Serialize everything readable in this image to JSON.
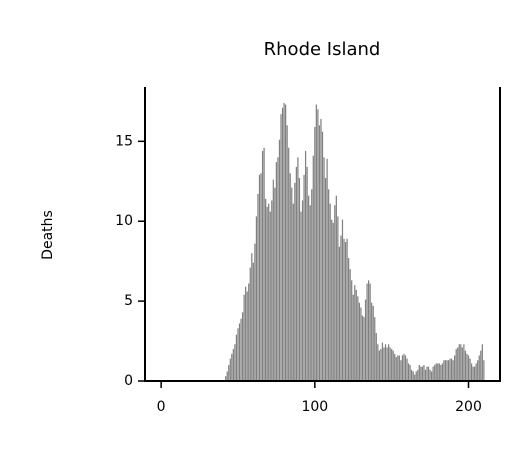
{
  "chart_data": {
    "type": "bar",
    "title": "Rhode Island",
    "y_label": "Deaths",
    "color": "#808080",
    "xlim": [
      -10.5,
      220.5
    ],
    "ylim": [
      0,
      18.4
    ],
    "xticks": [
      0,
      100,
      200
    ],
    "yticks": [
      0,
      5,
      10,
      15
    ],
    "x": [
      0,
      1,
      2,
      3,
      4,
      5,
      6,
      7,
      8,
      9,
      10,
      11,
      12,
      13,
      14,
      15,
      16,
      17,
      18,
      19,
      20,
      21,
      22,
      23,
      24,
      25,
      26,
      27,
      28,
      29,
      30,
      31,
      32,
      33,
      34,
      35,
      36,
      37,
      38,
      39,
      40,
      41,
      42,
      43,
      44,
      45,
      46,
      47,
      48,
      49,
      50,
      51,
      52,
      53,
      54,
      55,
      56,
      57,
      58,
      59,
      60,
      61,
      62,
      63,
      64,
      65,
      66,
      67,
      68,
      69,
      70,
      71,
      72,
      73,
      74,
      75,
      76,
      77,
      78,
      79,
      80,
      81,
      82,
      83,
      84,
      85,
      86,
      87,
      88,
      89,
      90,
      91,
      92,
      93,
      94,
      95,
      96,
      97,
      98,
      99,
      100,
      101,
      102,
      103,
      104,
      105,
      106,
      107,
      108,
      109,
      110,
      111,
      112,
      113,
      114,
      115,
      116,
      117,
      118,
      119,
      120,
      121,
      122,
      123,
      124,
      125,
      126,
      127,
      128,
      129,
      130,
      131,
      132,
      133,
      134,
      135,
      136,
      137,
      138,
      139,
      140,
      141,
      142,
      143,
      144,
      145,
      146,
      147,
      148,
      149,
      150,
      151,
      152,
      153,
      154,
      155,
      156,
      157,
      158,
      159,
      160,
      161,
      162,
      163,
      164,
      165,
      166,
      167,
      168,
      169,
      170,
      171,
      172,
      173,
      174,
      175,
      176,
      177,
      178,
      179,
      180,
      181,
      182,
      183,
      184,
      185,
      186,
      187,
      188,
      189,
      190,
      191,
      192,
      193,
      194,
      195,
      196,
      197,
      198,
      199,
      200,
      201,
      202,
      203,
      204,
      205,
      206,
      207,
      208,
      209,
      210
    ],
    "values": [
      0,
      0,
      0,
      0,
      0,
      0,
      0,
      0,
      0,
      0,
      0,
      0,
      0,
      0,
      0,
      0,
      0,
      0,
      0,
      0,
      0,
      0,
      0,
      0,
      0,
      0,
      0,
      0,
      0,
      0,
      0,
      0,
      0,
      0,
      0,
      0,
      0,
      0,
      0,
      0,
      0,
      0,
      0.3,
      0.6,
      1.0,
      1.4,
      1.7,
      2.0,
      2.3,
      2.9,
      3.3,
      3.6,
      3.9,
      4.3,
      5.4,
      5.9,
      5.6,
      6.1,
      7.1,
      8.0,
      7.4,
      8.6,
      10.3,
      11.7,
      12.9,
      13.0,
      14.4,
      14.6,
      11.4,
      10.9,
      11.1,
      10.6,
      11.3,
      12.6,
      12.1,
      13.7,
      14.0,
      15.1,
      16.7,
      17.1,
      17.4,
      17.3,
      16.0,
      14.6,
      13.0,
      12.1,
      11.1,
      12.4,
      13.4,
      14.0,
      12.7,
      10.6,
      11.3,
      12.9,
      14.4,
      13.4,
      11.6,
      11.0,
      12.0,
      14.1,
      15.9,
      17.3,
      17.0,
      16.0,
      16.4,
      15.6,
      14.0,
      12.7,
      13.9,
      12.0,
      11.1,
      10.1,
      9.9,
      11.0,
      11.6,
      10.3,
      8.4,
      9.1,
      10.1,
      8.9,
      8.7,
      8.9,
      7.7,
      7.0,
      6.3,
      5.4,
      6.0,
      5.7,
      5.3,
      4.9,
      4.6,
      4.1,
      4.0,
      5.1,
      6.1,
      6.3,
      6.1,
      4.9,
      4.7,
      4.0,
      3.0,
      2.3,
      1.9,
      2.0,
      2.4,
      2.1,
      2.3,
      2.1,
      2.3,
      2.1,
      2.0,
      1.9,
      1.7,
      1.5,
      1.6,
      1.6,
      1.3,
      1.6,
      1.7,
      1.6,
      1.4,
      1.1,
      1.0,
      0.7,
      0.6,
      0.4,
      0.6,
      0.7,
      1.0,
      0.9,
      0.9,
      1.0,
      0.7,
      0.9,
      0.9,
      0.7,
      0.6,
      0.9,
      1.0,
      1.1,
      1.1,
      1.1,
      1.0,
      1.1,
      1.3,
      1.3,
      1.3,
      1.3,
      1.4,
      1.4,
      1.3,
      1.6,
      2.0,
      2.1,
      2.3,
      2.3,
      2.1,
      2.3,
      1.9,
      1.7,
      1.6,
      1.4,
      1.1,
      0.9,
      0.9,
      1.1,
      1.3,
      1.6,
      1.9,
      2.3,
      1.3
    ]
  }
}
